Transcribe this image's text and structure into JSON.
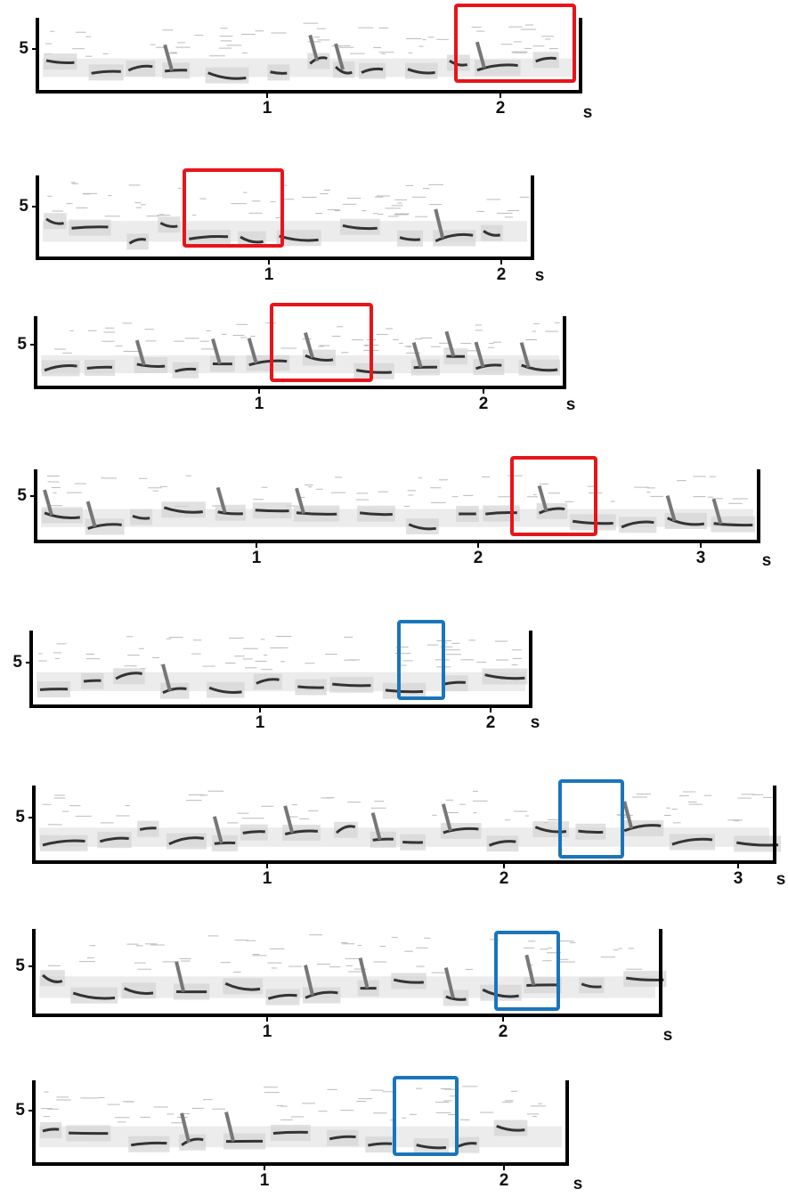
{
  "panels": [
    {
      "y_tick": "5",
      "x_ticks": [
        "1",
        "2"
      ],
      "x_unit": "s",
      "box_color": "#e8141a"
    },
    {
      "y_tick": "5",
      "x_ticks": [
        "1",
        "2"
      ],
      "x_unit": "s",
      "box_color": "#e8141a"
    },
    {
      "y_tick": "5",
      "x_ticks": [
        "1",
        "2"
      ],
      "x_unit": "s",
      "box_color": "#e8141a"
    },
    {
      "y_tick": "5",
      "x_ticks": [
        "1",
        "2",
        "3"
      ],
      "x_unit": "s",
      "box_color": "#e8141a"
    },
    {
      "y_tick": "5",
      "x_ticks": [
        "1",
        "2"
      ],
      "x_unit": "s",
      "box_color": "#1a75bb"
    },
    {
      "y_tick": "5",
      "x_ticks": [
        "1",
        "2",
        "3"
      ],
      "x_unit": "s",
      "box_color": "#1a75bb"
    },
    {
      "y_tick": "5",
      "x_ticks": [
        "1",
        "2"
      ],
      "x_unit": "s",
      "box_color": "#1a75bb"
    },
    {
      "y_tick": "5",
      "x_ticks": [
        "1",
        "2"
      ],
      "x_unit": "s",
      "box_color": "#1a75bb"
    }
  ]
}
